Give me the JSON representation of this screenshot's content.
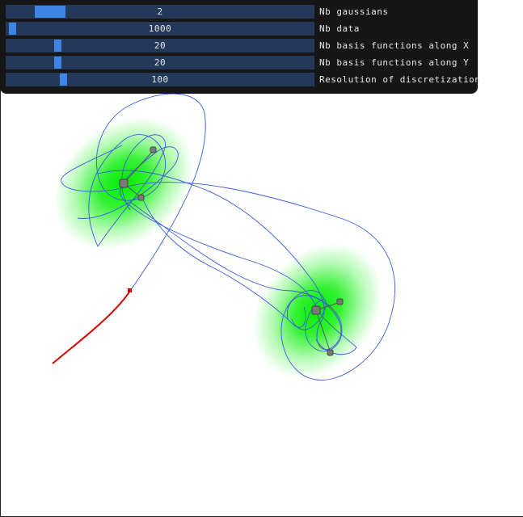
{
  "sliders": [
    {
      "label": "Nb gaussians",
      "value": "2",
      "fraction": 0.105
    },
    {
      "label": "Nb data",
      "value": "1000",
      "fraction": 0.01
    },
    {
      "label": "Nb basis functions along X",
      "value": "20",
      "fraction": 0.16
    },
    {
      "label": "Nb basis functions along Y",
      "value": "20",
      "fraction": 0.16
    },
    {
      "label": "Resolution of discretization",
      "value": "100",
      "fraction": 0.18
    }
  ],
  "colors": {
    "panel": "#161616",
    "slider_track": "#24385a",
    "slider_grab": "#3d86e6",
    "gaussian": "#00ee00",
    "trajectory": "#3b5bd6",
    "reproduction": "#d40000",
    "center": "#7a7a7a"
  },
  "icons": {
    "gaussian_center": "square-marker",
    "eigen_handle": "small-square-marker",
    "start_point": "red-dot"
  }
}
